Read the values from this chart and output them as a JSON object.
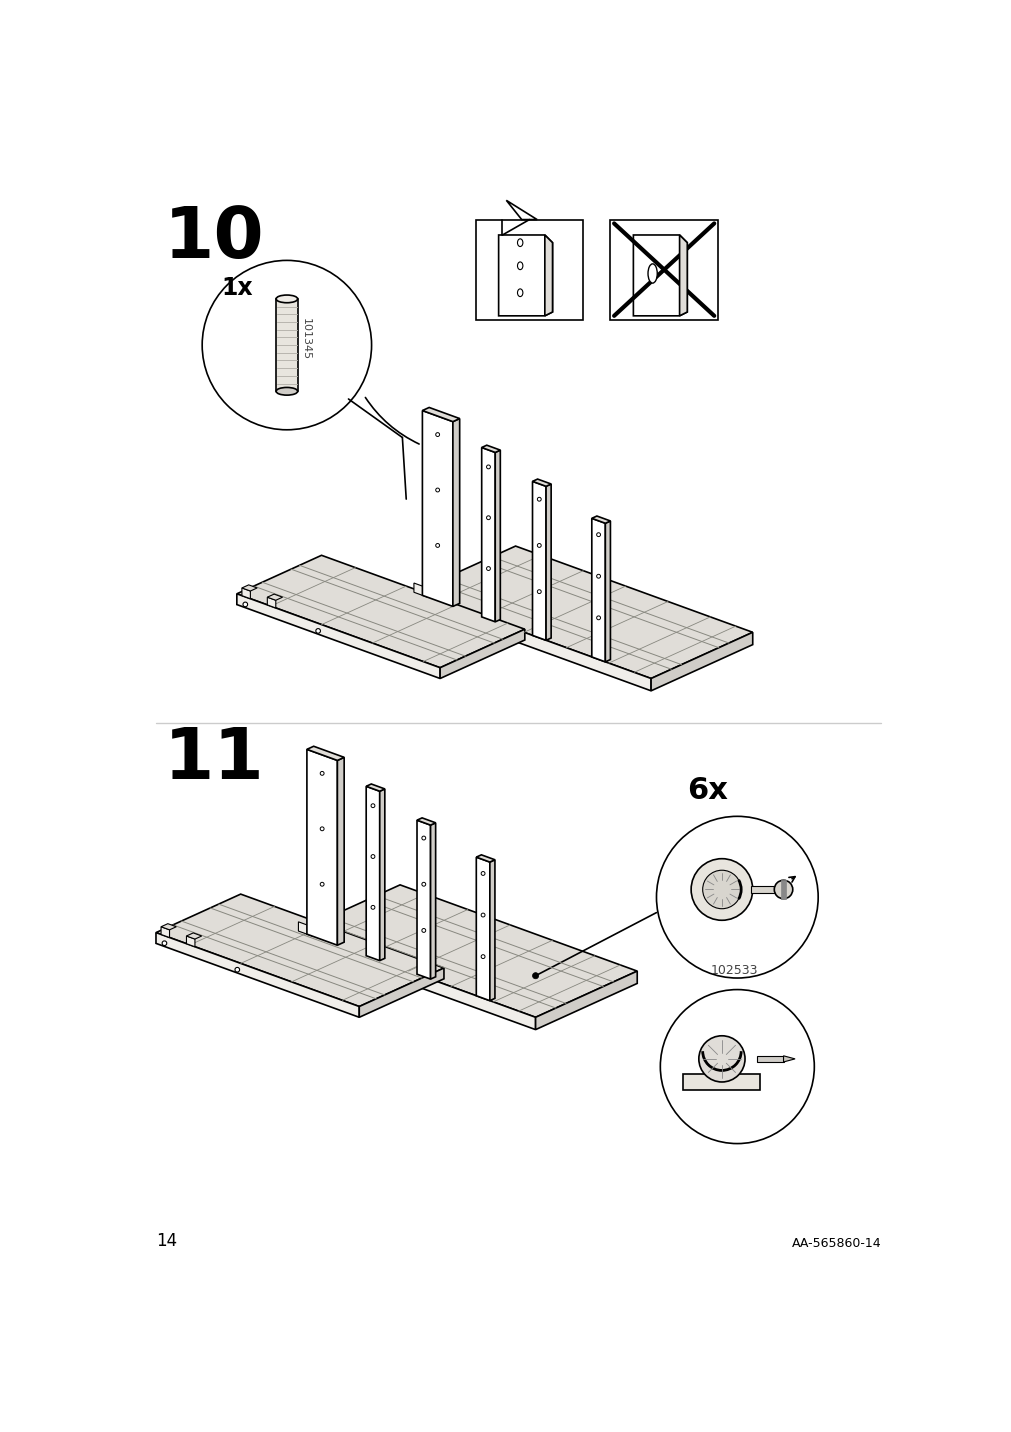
{
  "page_number": "14",
  "doc_code": "AA-565860-14",
  "background_color": "#ffffff",
  "step10_number": "10",
  "step11_number": "11",
  "step10_quantity": "1x",
  "step10_part_code": "101345",
  "step11_quantity": "6x",
  "step11_part_code": "102533",
  "lc": "#000000",
  "face_fill": "#f0eeea",
  "top_fill": "#e0ddd8",
  "side_fill": "#d0cdc8",
  "white": "#ffffff"
}
